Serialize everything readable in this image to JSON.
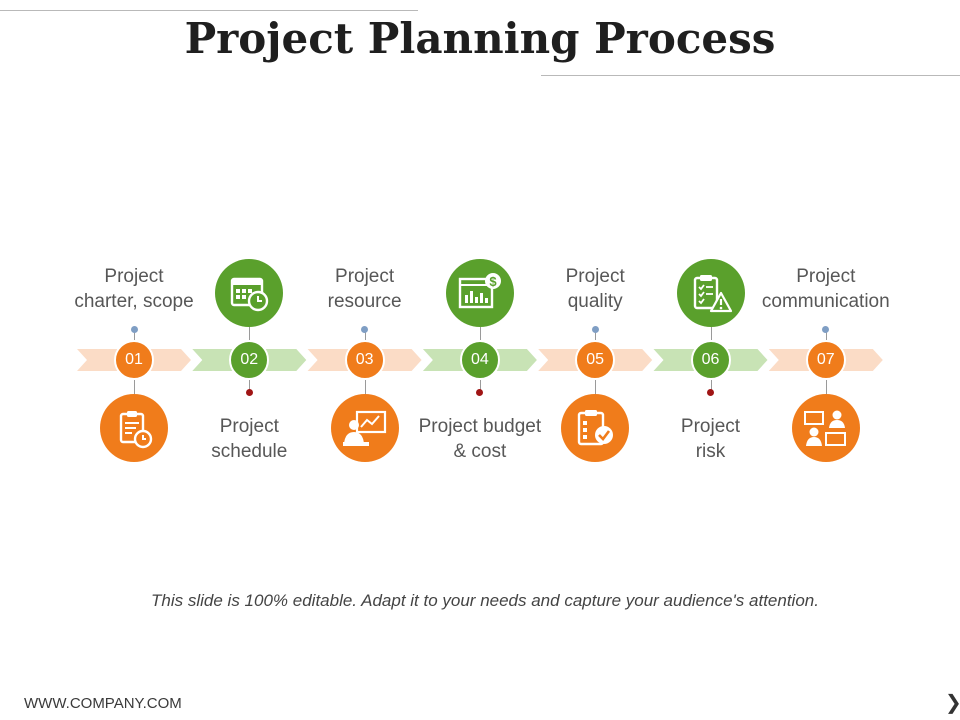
{
  "title": "Project Planning Process",
  "colors": {
    "orange": "#f07c1b",
    "green": "#5aa02c",
    "orange_arrow": "#fbdcc6",
    "green_arrow": "#c8e3b5",
    "dot_orange": "#7f9ec4",
    "dot_green": "#a01515"
  },
  "steps": [
    {
      "number": "01",
      "label": "Project\ncharter, scope",
      "icon": "clipboard-clock-icon",
      "color": "orange"
    },
    {
      "number": "02",
      "label": "Project\nschedule",
      "icon": "calendar-clock-icon",
      "color": "green"
    },
    {
      "number": "03",
      "label": "Project\nresource",
      "icon": "presenter-board-icon",
      "color": "orange"
    },
    {
      "number": "04",
      "label": "Project budget\n& cost",
      "icon": "dollar-chart-icon",
      "color": "green"
    },
    {
      "number": "05",
      "label": "Project\nquality",
      "icon": "checklist-check-icon",
      "color": "orange"
    },
    {
      "number": "06",
      "label": "Project\nrisk",
      "icon": "checklist-warning-icon",
      "color": "green"
    },
    {
      "number": "07",
      "label": "Project\ncommunication",
      "icon": "people-chat-icon",
      "color": "orange"
    }
  ],
  "footer_note": "This slide is 100% editable. Adapt it to your needs and capture your audience's attention.",
  "footer_url": "WWW.COMPANY.COM",
  "next_icon": "chevron-right-icon"
}
